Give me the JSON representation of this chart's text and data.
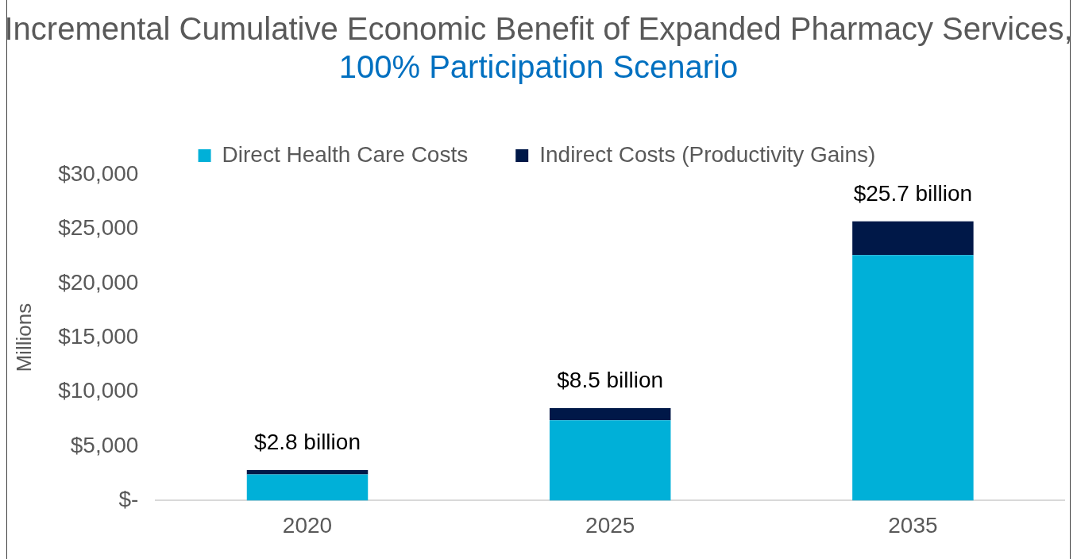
{
  "chart_data": {
    "type": "bar",
    "title": "Incremental Cumulative Economic Benefit of Expanded Pharmacy Services,",
    "subtitle": "100% Participation Scenario",
    "categories": [
      "2020",
      "2025",
      "2035"
    ],
    "series": [
      {
        "name": "Direct Health Care Costs",
        "color": "#00b0d8",
        "values": [
          2400,
          7400,
          22600
        ]
      },
      {
        "name": "Indirect Costs (Productivity Gains)",
        "color": "#001848",
        "values": [
          400,
          1100,
          3100
        ]
      }
    ],
    "stacked": true,
    "totals": [
      "$2.8 billion",
      "$8.5 billion",
      "$25.7 billion"
    ],
    "ylabel": "Millions",
    "ylim": [
      0,
      30000
    ],
    "yticks": [
      {
        "value": 0,
        "label": "$-"
      },
      {
        "value": 5000,
        "label": "$5,000"
      },
      {
        "value": 10000,
        "label": "$10,000"
      },
      {
        "value": 15000,
        "label": "$15,000"
      },
      {
        "value": 20000,
        "label": "$20,000"
      },
      {
        "value": 25000,
        "label": "$25,000"
      },
      {
        "value": 30000,
        "label": "$30,000"
      }
    ],
    "grid": false,
    "legend": "top"
  }
}
